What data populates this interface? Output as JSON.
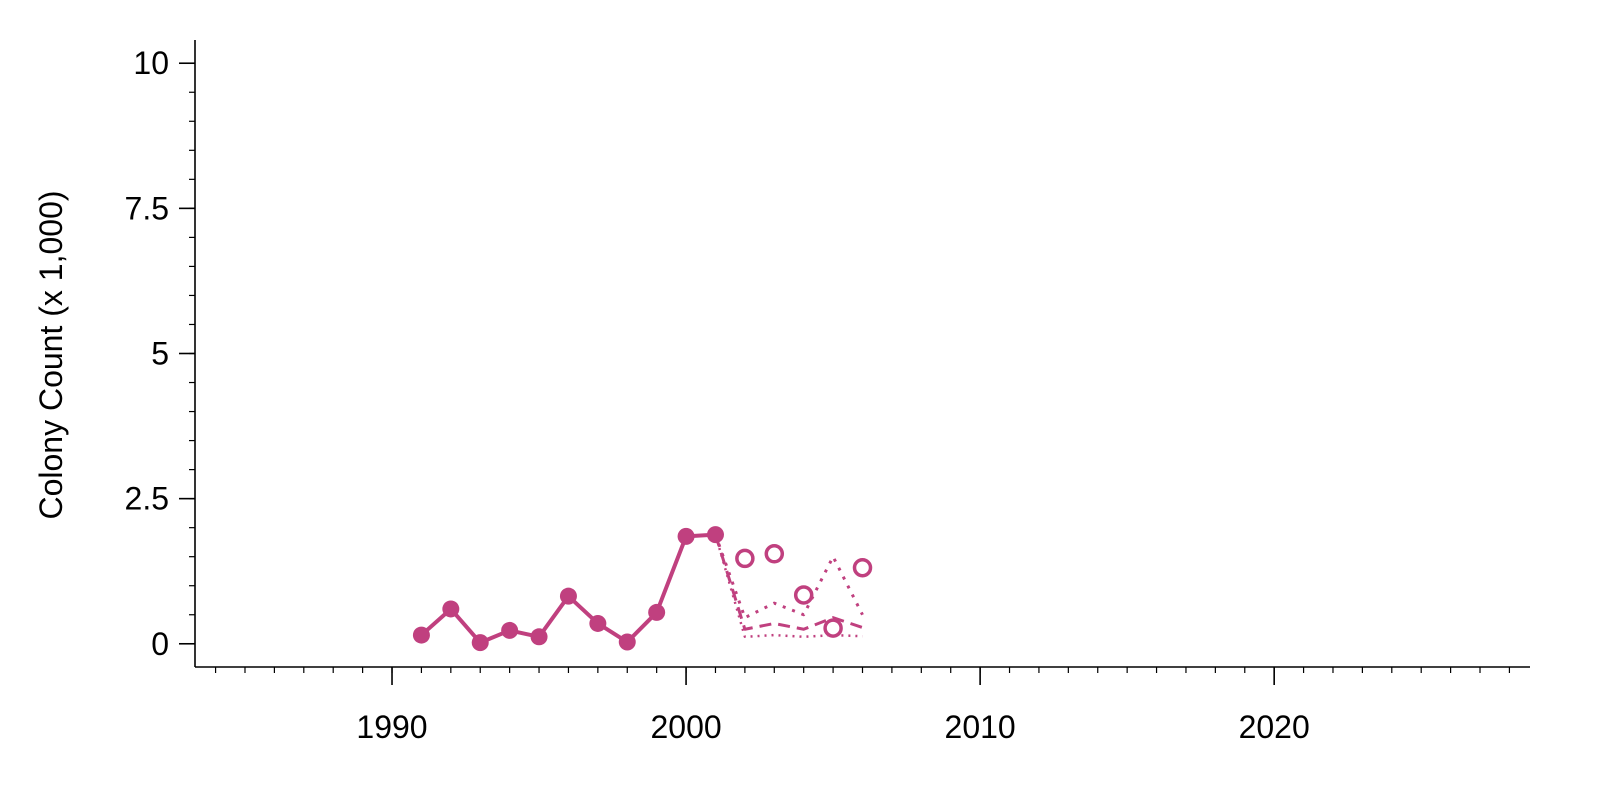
{
  "chart_data": {
    "type": "line",
    "ylabel": "Colony Count (x 1,000)",
    "xlabel": "",
    "title": "",
    "xlim": [
      1983.3,
      2028.7
    ],
    "ylim": [
      -0.4,
      10.4
    ],
    "x_ticks": [
      1990,
      2000,
      2010,
      2020
    ],
    "x_tick_labels": [
      "1990",
      "2000",
      "2010",
      "2020"
    ],
    "y_ticks": [
      0,
      2.5,
      5,
      7.5,
      10
    ],
    "y_tick_labels": [
      "0",
      "2.5",
      "5",
      "7.5",
      "10"
    ],
    "x_minor_step": 1,
    "y_minor_step": 0.5,
    "grid": false,
    "color": "#c0407f",
    "series": [
      {
        "style": "solid-filled-markers",
        "x": [
          1991,
          1992,
          1993,
          1994,
          1995,
          1996,
          1997,
          1998,
          1999,
          2000,
          2001
        ],
        "y": [
          0.15,
          0.6,
          0.02,
          0.23,
          0.12,
          0.82,
          0.35,
          0.03,
          0.54,
          1.85,
          1.88
        ]
      },
      {
        "style": "open-markers",
        "x": [
          2002,
          2003,
          2004,
          2005,
          2006
        ],
        "y": [
          1.47,
          1.55,
          0.84,
          0.27,
          1.31
        ]
      },
      {
        "style": "dotted",
        "x": [
          2001,
          2002,
          2003,
          2004,
          2005,
          2006
        ],
        "y": [
          1.88,
          0.45,
          0.7,
          0.5,
          1.5,
          0.5
        ]
      },
      {
        "style": "dashed",
        "x": [
          2001,
          2002,
          2003,
          2004,
          2005,
          2006
        ],
        "y": [
          1.88,
          0.25,
          0.35,
          0.25,
          0.45,
          0.28
        ]
      },
      {
        "style": "fine-dotted",
        "x": [
          2001,
          2002,
          2003,
          2004,
          2005,
          2006
        ],
        "y": [
          1.88,
          0.12,
          0.15,
          0.12,
          0.15,
          0.13
        ]
      }
    ]
  }
}
